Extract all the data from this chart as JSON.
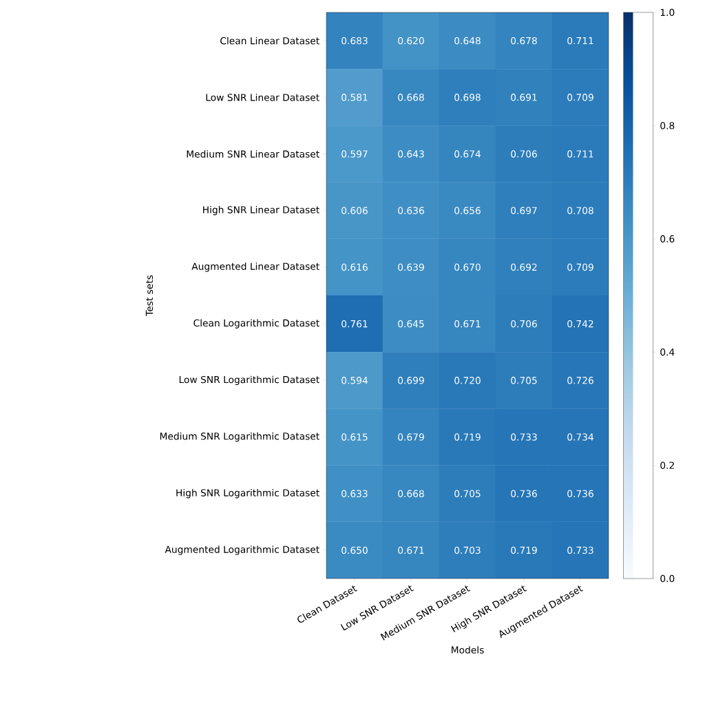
{
  "chart_data": {
    "type": "heatmap",
    "xlabel": "Models",
    "ylabel": "Test sets",
    "categories": [
      "Clean Dataset",
      "Low SNR Dataset",
      "Medium SNR Dataset",
      "High SNR Dataset",
      "Augmented Dataset"
    ],
    "y_categories": [
      "Clean Linear Dataset",
      "Low SNR Linear Dataset",
      "Medium SNR Linear Dataset",
      "High SNR Linear Dataset",
      "Augmented Linear Dataset",
      "Clean Logarithmic Dataset",
      "Low SNR Logarithmic Dataset",
      "Medium SNR Logarithmic Dataset",
      "High SNR Logarithmic Dataset",
      "Augmented Logarithmic Dataset"
    ],
    "cells": [
      [
        0.683,
        0.62,
        0.648,
        0.678,
        0.711
      ],
      [
        0.581,
        0.668,
        0.698,
        0.691,
        0.709
      ],
      [
        0.597,
        0.643,
        0.674,
        0.706,
        0.711
      ],
      [
        0.606,
        0.636,
        0.656,
        0.697,
        0.708
      ],
      [
        0.616,
        0.639,
        0.67,
        0.692,
        0.709
      ],
      [
        0.761,
        0.645,
        0.671,
        0.706,
        0.742
      ],
      [
        0.594,
        0.699,
        0.72,
        0.705,
        0.726
      ],
      [
        0.615,
        0.679,
        0.719,
        0.733,
        0.734
      ],
      [
        0.633,
        0.668,
        0.705,
        0.736,
        0.736
      ],
      [
        0.65,
        0.671,
        0.703,
        0.719,
        0.733
      ]
    ],
    "cell_labels": [
      [
        "0.683",
        "0.620",
        "0.648",
        "0.678",
        "0.711"
      ],
      [
        "0.581",
        "0.668",
        "0.698",
        "0.691",
        "0.709"
      ],
      [
        "0.597",
        "0.643",
        "0.674",
        "0.706",
        "0.711"
      ],
      [
        "0.606",
        "0.636",
        "0.656",
        "0.697",
        "0.708"
      ],
      [
        "0.616",
        "0.639",
        "0.670",
        "0.692",
        "0.709"
      ],
      [
        "0.761",
        "0.645",
        "0.671",
        "0.706",
        "0.742"
      ],
      [
        "0.594",
        "0.699",
        "0.720",
        "0.705",
        "0.726"
      ],
      [
        "0.615",
        "0.679",
        "0.719",
        "0.733",
        "0.734"
      ],
      [
        "0.633",
        "0.668",
        "0.705",
        "0.736",
        "0.736"
      ],
      [
        "0.650",
        "0.671",
        "0.703",
        "0.719",
        "0.733"
      ]
    ],
    "clim": [
      0,
      1
    ],
    "cticks": [
      {
        "value": 0,
        "label": "0.0"
      },
      {
        "value": 0.2,
        "label": "0.2"
      },
      {
        "value": 0.4,
        "label": "0.4"
      },
      {
        "value": 0.6,
        "label": "0.6"
      },
      {
        "value": 0.8,
        "label": "0.8"
      },
      {
        "value": 1,
        "label": "1.0"
      }
    ]
  }
}
